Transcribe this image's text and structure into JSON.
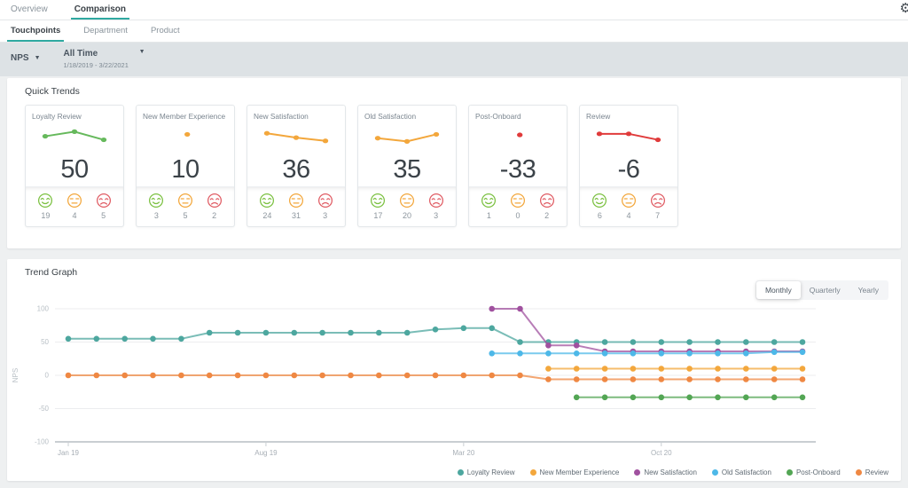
{
  "colors": {
    "accent_teal": "#2fa9a1"
  },
  "header": {
    "tabs": [
      {
        "label": "Overview"
      },
      {
        "label": "Comparison"
      }
    ],
    "active_tab": "Comparison",
    "subtabs": [
      {
        "label": "Touchpoints"
      },
      {
        "label": "Department"
      },
      {
        "label": "Product"
      }
    ],
    "active_subtab": "Touchpoints"
  },
  "filters": {
    "metric_label": "NPS",
    "time_label": "All Time",
    "time_range": "1/18/2019 - 3/22/2021"
  },
  "quick_trends": {
    "title": "Quick Trends",
    "emoji_colors": {
      "happy": "#7cc142",
      "neutral": "#f3a73c",
      "sad": "#e05c64"
    },
    "cards": [
      {
        "title": "Loyalty Review",
        "value": "50",
        "spark_color": "#66b95c",
        "spark_points": [
          55,
          72,
          42
        ],
        "counts": {
          "happy": "19",
          "neutral": "4",
          "sad": "5"
        }
      },
      {
        "title": "New Member Experience",
        "value": "10",
        "spark_color": "#f3a73c",
        "spark_points": [
          62
        ],
        "counts": {
          "happy": "3",
          "neutral": "5",
          "sad": "2"
        }
      },
      {
        "title": "New Satisfaction",
        "value": "36",
        "spark_color": "#f3a73c",
        "spark_points": [
          66,
          50,
          38
        ],
        "counts": {
          "happy": "24",
          "neutral": "31",
          "sad": "3"
        }
      },
      {
        "title": "Old Satisfaction",
        "value": "35",
        "spark_color": "#f3a73c",
        "spark_points": [
          48,
          36,
          62
        ],
        "counts": {
          "happy": "17",
          "neutral": "20",
          "sad": "3"
        }
      },
      {
        "title": "Post-Onboard",
        "value": "-33",
        "spark_color": "#e03b3b",
        "spark_points": [
          60
        ],
        "counts": {
          "happy": "1",
          "neutral": "0",
          "sad": "2"
        }
      },
      {
        "title": "Review",
        "value": "-6",
        "spark_color": "#e03b3b",
        "spark_points": [
          64,
          64,
          42
        ],
        "counts": {
          "happy": "6",
          "neutral": "4",
          "sad": "7"
        }
      }
    ]
  },
  "trend_graph": {
    "title": "Trend Graph",
    "period_options": [
      {
        "label": "Monthly",
        "active": true
      },
      {
        "label": "Quarterly",
        "active": false
      },
      {
        "label": "Yearly",
        "active": false
      }
    ]
  },
  "chart_data": {
    "type": "line",
    "title": "Trend Graph",
    "period": "Monthly",
    "xlabel": "",
    "ylabel": "NPS",
    "ylim": [
      -100,
      100
    ],
    "y_ticks": [
      100,
      50,
      0,
      -50,
      -100
    ],
    "grid": true,
    "legend_position": "bottom-right",
    "n_points": 27,
    "x_unit": "month",
    "x_tick_labels": [
      {
        "index": 1,
        "label": "Jan 19"
      },
      {
        "index": 8,
        "label": "Aug 19"
      },
      {
        "index": 15,
        "label": "Mar 20"
      },
      {
        "index": 22,
        "label": "Oct 20"
      }
    ],
    "series": [
      {
        "name": "Loyalty Review",
        "color": "#4da79f",
        "start": 1,
        "values": [
          55,
          55,
          55,
          55,
          55,
          64,
          64,
          64,
          64,
          64,
          64,
          64,
          64,
          69,
          71,
          71,
          50,
          50,
          50,
          50,
          50,
          50,
          50,
          50,
          50,
          50,
          50
        ]
      },
      {
        "name": "New Member Experience",
        "color": "#f3a73c",
        "start": 18,
        "values": [
          10,
          10,
          10,
          10,
          10,
          10,
          10,
          10,
          10,
          10
        ]
      },
      {
        "name": "New Satisfaction",
        "color": "#a0519f",
        "start": 16,
        "values": [
          100,
          100,
          45,
          45,
          36,
          36,
          36,
          36,
          36,
          36,
          36,
          36
        ]
      },
      {
        "name": "Old Satisfaction",
        "color": "#4db8e8",
        "start": 16,
        "values": [
          33,
          33,
          33,
          33,
          33,
          33,
          33,
          33,
          33,
          33,
          35,
          35
        ]
      },
      {
        "name": "Post-Onboard",
        "color": "#53a654",
        "start": 19,
        "values": [
          -33,
          -33,
          -33,
          -33,
          -33,
          -33,
          -33,
          -33,
          -33
        ]
      },
      {
        "name": "Review",
        "color": "#ef8843",
        "start": 1,
        "values": [
          0,
          0,
          0,
          0,
          0,
          0,
          0,
          0,
          0,
          0,
          0,
          0,
          0,
          0,
          0,
          0,
          0,
          -6,
          -6,
          -6,
          -6,
          -6,
          -6,
          -6,
          -6,
          -6,
          -6
        ]
      }
    ]
  }
}
